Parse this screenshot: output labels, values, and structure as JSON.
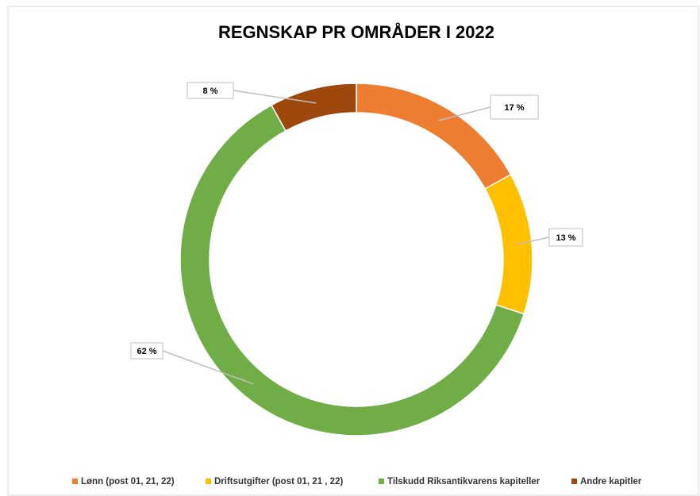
{
  "chart_data": {
    "type": "donut",
    "title": "REGNSKAP PR OMRÅDER I 2022",
    "categories": [
      "Lønn (post 01, 21, 22)",
      "Driftsutgifter (post 01, 21 , 22)",
      "Tilskudd Riksantikvarens kapiteller",
      "Andre kapitler"
    ],
    "values": [
      17,
      13,
      62,
      8
    ],
    "value_labels": [
      "17 %",
      "13 %",
      "62 %",
      "8 %"
    ],
    "colors": [
      "#ed7d31",
      "#ffc000",
      "#70ad47",
      "#9e480e"
    ],
    "legend": "bottom"
  }
}
